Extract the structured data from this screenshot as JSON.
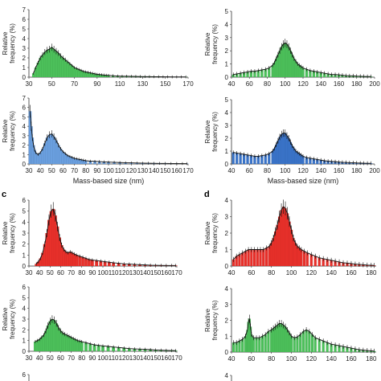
{
  "chart_data": [
    {
      "type": "bar",
      "panel": "",
      "color": "#4cc05a",
      "ylabel": "Relative frequency (%)",
      "xlabel": "",
      "xlim": [
        30,
        170
      ],
      "ylim": [
        0,
        7
      ],
      "xticks": [
        30,
        50,
        70,
        90,
        110,
        130,
        150,
        170
      ],
      "yticks": [
        0,
        1,
        2,
        3,
        4,
        5,
        6,
        7
      ],
      "x": [
        34,
        36,
        38,
        40,
        42,
        44,
        46,
        48,
        50,
        52,
        54,
        56,
        58,
        60,
        62,
        64,
        66,
        68,
        70,
        72,
        74,
        76,
        78,
        80,
        82,
        84,
        86,
        88,
        90,
        92,
        94,
        96,
        98,
        100,
        104,
        108,
        112,
        116,
        120,
        124,
        128,
        132,
        136,
        140,
        144,
        148,
        152,
        156,
        160,
        164,
        168
      ],
      "values": [
        0.4,
        1.0,
        1.5,
        2.0,
        2.3,
        2.6,
        2.8,
        2.9,
        3.1,
        2.9,
        2.7,
        2.5,
        2.2,
        2.0,
        1.8,
        1.6,
        1.4,
        1.2,
        1.0,
        0.9,
        0.8,
        0.7,
        0.6,
        0.55,
        0.5,
        0.45,
        0.4,
        0.35,
        0.3,
        0.28,
        0.25,
        0.22,
        0.2,
        0.18,
        0.15,
        0.12,
        0.1,
        0.1,
        0.09,
        0.08,
        0.07,
        0.06,
        0.06,
        0.05,
        0.05,
        0.04,
        0.04,
        0.03,
        0.03,
        0.03,
        0.03
      ]
    },
    {
      "type": "bar",
      "panel": "",
      "color": "#4cc05a",
      "ylabel": "Relative frequency (%)",
      "xlabel": "",
      "xlim": [
        40,
        200
      ],
      "ylim": [
        0,
        5
      ],
      "xticks": [
        40,
        60,
        80,
        100,
        120,
        140,
        160,
        180,
        200
      ],
      "yticks": [
        0,
        1,
        2,
        3,
        4,
        5
      ],
      "x": [
        42,
        46,
        50,
        54,
        58,
        62,
        66,
        70,
        74,
        78,
        82,
        86,
        88,
        90,
        92,
        94,
        96,
        98,
        100,
        102,
        104,
        106,
        108,
        110,
        112,
        114,
        116,
        118,
        120,
        124,
        128,
        132,
        136,
        140,
        144,
        148,
        152,
        156,
        160,
        164,
        168,
        172,
        176,
        180,
        184,
        188,
        192,
        196
      ],
      "values": [
        0.2,
        0.25,
        0.3,
        0.35,
        0.4,
        0.45,
        0.45,
        0.5,
        0.55,
        0.6,
        0.7,
        0.9,
        1.1,
        1.4,
        1.7,
        2.0,
        2.3,
        2.5,
        2.6,
        2.5,
        2.3,
        2.0,
        1.7,
        1.4,
        1.2,
        1.0,
        0.9,
        0.8,
        0.7,
        0.6,
        0.5,
        0.45,
        0.4,
        0.35,
        0.3,
        0.25,
        0.2,
        0.2,
        0.18,
        0.15,
        0.12,
        0.1,
        0.1,
        0.08,
        0.07,
        0.06,
        0.05,
        0.05
      ]
    },
    {
      "type": "bar",
      "panel": "",
      "color": "#6a9fdf",
      "ylabel": "Relative frequency (%)",
      "xlabel": "Mass-based size (nm)",
      "xlim": [
        30,
        170
      ],
      "ylim": [
        0,
        7
      ],
      "xticks": [
        30,
        40,
        50,
        60,
        70,
        80,
        90,
        100,
        110,
        120,
        130,
        140,
        150,
        160,
        170
      ],
      "yticks": [
        0,
        1,
        2,
        3,
        4,
        5,
        6,
        7
      ],
      "x": [
        31,
        32,
        33,
        34,
        35,
        36,
        38,
        40,
        42,
        44,
        46,
        48,
        50,
        52,
        54,
        56,
        58,
        60,
        62,
        64,
        66,
        68,
        70,
        72,
        74,
        76,
        78,
        80,
        84,
        88,
        92,
        96,
        100,
        105,
        110,
        115,
        120,
        125,
        130,
        135,
        140,
        145,
        150,
        155,
        160,
        165,
        169
      ],
      "values": [
        5.6,
        4.0,
        2.8,
        2.0,
        1.5,
        1.2,
        1.0,
        1.2,
        1.6,
        2.2,
        2.8,
        3.1,
        3.2,
        2.9,
        2.5,
        2.0,
        1.6,
        1.3,
        1.1,
        0.9,
        0.8,
        0.7,
        0.6,
        0.55,
        0.5,
        0.45,
        0.4,
        0.35,
        0.3,
        0.28,
        0.25,
        0.22,
        0.2,
        0.18,
        0.15,
        0.13,
        0.12,
        0.1,
        0.09,
        0.08,
        0.07,
        0.06,
        0.06,
        0.05,
        0.05,
        0.04,
        0.04
      ]
    },
    {
      "type": "bar",
      "panel": "",
      "color": "#3a74c9",
      "ylabel": "Relative frequency (%)",
      "xlabel": "Mass-based size (nm)",
      "xlim": [
        40,
        200
      ],
      "ylim": [
        0,
        5
      ],
      "xticks": [
        40,
        60,
        80,
        100,
        120,
        140,
        160,
        180,
        200
      ],
      "yticks": [
        0,
        1,
        2,
        3,
        4,
        5
      ],
      "x": [
        42,
        46,
        50,
        54,
        58,
        62,
        66,
        70,
        74,
        78,
        82,
        86,
        88,
        90,
        92,
        94,
        96,
        98,
        100,
        102,
        104,
        106,
        108,
        110,
        112,
        114,
        116,
        118,
        120,
        124,
        128,
        132,
        136,
        140,
        144,
        148,
        152,
        156,
        160,
        164,
        168,
        172,
        176,
        180,
        184,
        188,
        192,
        196
      ],
      "values": [
        0.9,
        0.85,
        0.8,
        0.75,
        0.7,
        0.65,
        0.6,
        0.6,
        0.65,
        0.7,
        0.8,
        1.0,
        1.2,
        1.5,
        1.8,
        2.1,
        2.3,
        2.4,
        2.4,
        2.2,
        2.0,
        1.7,
        1.4,
        1.2,
        1.0,
        0.9,
        0.8,
        0.7,
        0.6,
        0.5,
        0.45,
        0.4,
        0.35,
        0.3,
        0.25,
        0.22,
        0.2,
        0.18,
        0.15,
        0.13,
        0.12,
        0.1,
        0.1,
        0.08,
        0.07,
        0.06,
        0.05,
        0.05
      ]
    },
    {
      "type": "bar",
      "panel": "c",
      "color": "#e8302a",
      "ylabel": "Relative frequency (%)",
      "xlabel": "",
      "xlim": [
        30,
        170
      ],
      "ylim": [
        0,
        6
      ],
      "xticks": [
        30,
        40,
        50,
        60,
        70,
        80,
        90,
        100,
        110,
        120,
        130,
        140,
        150,
        160,
        170
      ],
      "yticks": [
        0,
        1,
        2,
        3,
        4,
        5,
        6
      ],
      "x": [
        37,
        39,
        41,
        43,
        45,
        47,
        49,
        51,
        53,
        55,
        57,
        59,
        61,
        63,
        65,
        67,
        69,
        71,
        73,
        75,
        78,
        81,
        84,
        87,
        90,
        94,
        98,
        102,
        106,
        110,
        115,
        120,
        125,
        130,
        135,
        140,
        145,
        150,
        155,
        160,
        165,
        169
      ],
      "values": [
        0.2,
        0.4,
        0.7,
        1.2,
        2.0,
        3.0,
        4.2,
        5.0,
        5.2,
        4.6,
        3.6,
        2.6,
        1.9,
        1.5,
        1.3,
        1.2,
        1.3,
        1.2,
        1.1,
        1.0,
        0.9,
        0.8,
        0.7,
        0.6,
        0.55,
        0.5,
        0.45,
        0.4,
        0.35,
        0.3,
        0.25,
        0.2,
        0.18,
        0.15,
        0.12,
        0.1,
        0.08,
        0.07,
        0.06,
        0.05,
        0.05,
        0.05
      ]
    },
    {
      "type": "bar",
      "panel": "d",
      "color": "#e8302a",
      "ylabel": "Relative frequency (%)",
      "xlabel": "",
      "xlim": [
        40,
        185
      ],
      "ylim": [
        0,
        4
      ],
      "xticks": [
        40,
        60,
        80,
        100,
        120,
        140,
        160,
        180
      ],
      "yticks": [
        0,
        1,
        2,
        3,
        4
      ],
      "x": [
        42,
        45,
        48,
        51,
        54,
        57,
        60,
        63,
        66,
        69,
        72,
        75,
        78,
        80,
        82,
        84,
        86,
        88,
        90,
        92,
        94,
        96,
        98,
        100,
        102,
        104,
        106,
        108,
        110,
        113,
        116,
        120,
        124,
        128,
        132,
        136,
        140,
        144,
        148,
        152,
        156,
        160,
        164,
        168,
        172,
        176,
        180,
        183
      ],
      "values": [
        0.4,
        0.6,
        0.7,
        0.8,
        0.9,
        1.0,
        1.0,
        1.0,
        1.0,
        1.0,
        1.0,
        1.1,
        1.2,
        1.4,
        1.7,
        2.1,
        2.5,
        3.0,
        3.4,
        3.6,
        3.5,
        3.2,
        2.7,
        2.2,
        1.7,
        1.4,
        1.2,
        1.1,
        1.0,
        0.9,
        0.8,
        0.7,
        0.6,
        0.5,
        0.45,
        0.4,
        0.35,
        0.3,
        0.25,
        0.2,
        0.18,
        0.15,
        0.12,
        0.1,
        0.08,
        0.06,
        0.05,
        0.04
      ]
    },
    {
      "type": "bar",
      "panel": "",
      "color": "#4cc05a",
      "ylabel": "Relative frequency (%)",
      "xlabel": "",
      "xlim": [
        30,
        170
      ],
      "ylim": [
        0,
        6
      ],
      "xticks": [
        30,
        40,
        50,
        60,
        70,
        80,
        90,
        100,
        110,
        120,
        130,
        140,
        150,
        160,
        170
      ],
      "yticks": [
        0,
        1,
        2,
        3,
        4,
        5,
        6
      ],
      "x": [
        36,
        38,
        40,
        42,
        44,
        46,
        48,
        50,
        52,
        54,
        56,
        58,
        60,
        62,
        64,
        66,
        68,
        70,
        72,
        74,
        76,
        78,
        80,
        84,
        88,
        92,
        96,
        100,
        105,
        110,
        115,
        120,
        125,
        130,
        135,
        140,
        145,
        150,
        155,
        160,
        165,
        169
      ],
      "values": [
        0.9,
        1.0,
        1.1,
        1.3,
        1.5,
        1.9,
        2.4,
        2.8,
        3.0,
        2.9,
        2.6,
        2.2,
        1.9,
        1.7,
        1.6,
        1.5,
        1.4,
        1.3,
        1.2,
        1.1,
        1.0,
        0.95,
        0.9,
        0.8,
        0.7,
        0.6,
        0.55,
        0.5,
        0.45,
        0.4,
        0.35,
        0.3,
        0.25,
        0.22,
        0.2,
        0.18,
        0.15,
        0.12,
        0.1,
        0.08,
        0.07,
        0.06
      ]
    },
    {
      "type": "bar",
      "panel": "",
      "color": "#4cc05a",
      "ylabel": "Relative frequency (%)",
      "xlabel": "",
      "xlim": [
        40,
        185
      ],
      "ylim": [
        0,
        4
      ],
      "xticks": [
        40,
        60,
        80,
        100,
        120,
        140,
        160,
        180
      ],
      "yticks": [
        0,
        1,
        2,
        3,
        4
      ],
      "x": [
        42,
        45,
        48,
        51,
        54,
        56,
        57,
        58,
        59,
        60,
        62,
        65,
        68,
        71,
        74,
        77,
        80,
        82,
        84,
        86,
        88,
        90,
        92,
        94,
        96,
        98,
        100,
        103,
        106,
        109,
        112,
        115,
        118,
        121,
        124,
        128,
        132,
        136,
        140,
        144,
        148,
        152,
        156,
        160,
        164,
        168,
        172,
        176,
        180,
        183
      ],
      "values": [
        0.6,
        0.6,
        0.7,
        0.8,
        1.0,
        1.4,
        1.9,
        2.1,
        1.6,
        1.1,
        0.9,
        0.9,
        0.9,
        1.0,
        1.1,
        1.3,
        1.4,
        1.5,
        1.6,
        1.7,
        1.8,
        1.8,
        1.7,
        1.6,
        1.4,
        1.2,
        1.0,
        0.9,
        0.95,
        1.1,
        1.3,
        1.4,
        1.3,
        1.1,
        0.9,
        0.8,
        0.7,
        0.6,
        0.5,
        0.45,
        0.4,
        0.35,
        0.3,
        0.25,
        0.2,
        0.15,
        0.12,
        0.1,
        0.08,
        0.06
      ]
    }
  ],
  "bottom_partial": [
    {
      "ytick": "6"
    },
    {
      "ytick": "4"
    }
  ]
}
